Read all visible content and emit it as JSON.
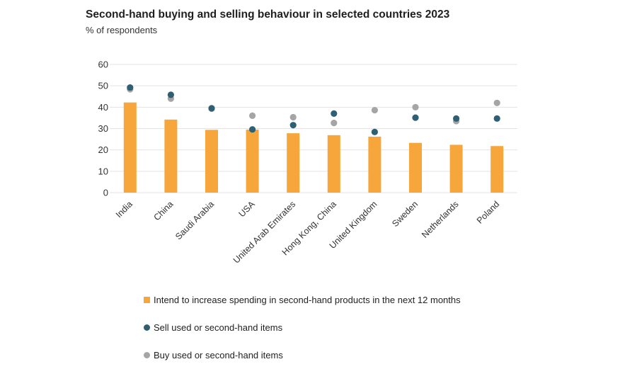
{
  "colors": {
    "bar": "#F7A63B",
    "sell": "#2E5F73",
    "buy": "#A5A5A5",
    "grid": "#E3E3E3",
    "axis_text": "#333333"
  },
  "chart_data": {
    "type": "bar",
    "title": "Second-hand buying and selling behaviour in selected countries 2023",
    "subtitle": "% of respondents",
    "categories": [
      "India",
      "China",
      "Saudi Arabia",
      "USA",
      "United Arab Emirates",
      "Hong Kong, China",
      "United Kingdom",
      "Sweden",
      "Netherlands",
      "Poland"
    ],
    "series": [
      {
        "name": "Intend to increase spending in second-hand products in the next 12 months",
        "kind": "bar",
        "color": "#F7A63B",
        "values": [
          42.2,
          34.2,
          29.4,
          29.5,
          27.8,
          26.9,
          26.2,
          23.3,
          22.4,
          21.8
        ]
      },
      {
        "name": "Sell used or second-hand items",
        "kind": "dot",
        "color": "#2E5F73",
        "values": [
          49.2,
          45.8,
          39.5,
          29.6,
          31.6,
          37.0,
          28.4,
          35.1,
          34.7,
          34.7
        ]
      },
      {
        "name": "Buy used or second-hand items",
        "kind": "dot",
        "color": "#A5A5A5",
        "values": [
          48.4,
          44.0,
          39.3,
          36.0,
          35.3,
          32.6,
          38.6,
          40.0,
          33.5,
          42.0
        ]
      }
    ],
    "yticks": [
      0,
      10,
      20,
      30,
      40,
      50,
      60
    ],
    "ylim": [
      0,
      60
    ],
    "grid": true,
    "legend": "bottom"
  }
}
